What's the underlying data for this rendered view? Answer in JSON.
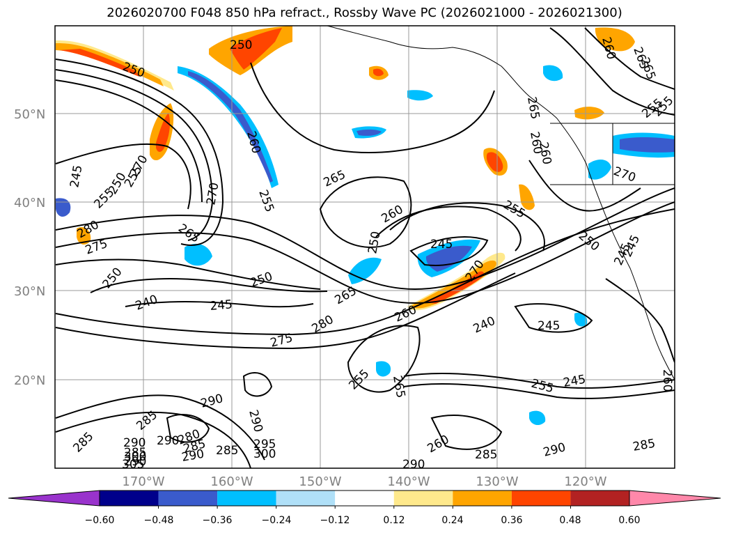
{
  "title": "2026020700 F048 850 hPa refract., Rossby Wave PC (2026021000 - 2026021300)",
  "map": {
    "lat_labels": [
      "50°N",
      "40°N",
      "30°N",
      "20°N"
    ],
    "lon_labels": [
      "170°W",
      "160°W",
      "150°W",
      "140°W",
      "130°W",
      "120°W"
    ],
    "contour_labels": [
      {
        "text": "250"
      },
      {
        "text": "250"
      },
      {
        "text": "260"
      },
      {
        "text": "260"
      },
      {
        "text": "265"
      },
      {
        "text": "255"
      },
      {
        "text": "265"
      },
      {
        "text": "255"
      },
      {
        "text": "270"
      },
      {
        "text": "265"
      },
      {
        "text": "280"
      },
      {
        "text": "275"
      },
      {
        "text": "250"
      },
      {
        "text": "240"
      },
      {
        "text": "245"
      },
      {
        "text": "250"
      },
      {
        "text": "275"
      },
      {
        "text": "280"
      },
      {
        "text": "265"
      },
      {
        "text": "260"
      },
      {
        "text": "250"
      },
      {
        "text": "245"
      },
      {
        "text": "270"
      },
      {
        "text": "260"
      },
      {
        "text": "240"
      },
      {
        "text": "255"
      },
      {
        "text": "250"
      },
      {
        "text": "245"
      },
      {
        "text": "245"
      },
      {
        "text": "255"
      },
      {
        "text": "245"
      },
      {
        "text": "255"
      },
      {
        "text": "265"
      },
      {
        "text": "290"
      },
      {
        "text": "285"
      },
      {
        "text": "290"
      },
      {
        "text": "280"
      },
      {
        "text": "285"
      },
      {
        "text": "290"
      },
      {
        "text": "285"
      },
      {
        "text": "295"
      },
      {
        "text": "300"
      },
      {
        "text": "285"
      },
      {
        "text": "290"
      },
      {
        "text": "285"
      },
      {
        "text": "290"
      },
      {
        "text": "285"
      },
      {
        "text": "260"
      },
      {
        "text": "265"
      },
      {
        "text": "270"
      },
      {
        "text": "245"
      },
      {
        "text": "250"
      },
      {
        "text": "255"
      },
      {
        "text": "255"
      },
      {
        "text": "260"
      },
      {
        "text": "260"
      },
      {
        "text": "260"
      },
      {
        "text": "265"
      },
      {
        "text": "255"
      },
      {
        "text": "270"
      },
      {
        "text": "245"
      },
      {
        "text": "290"
      },
      {
        "text": "285"
      },
      {
        "text": "290"
      },
      {
        "text": "305"
      },
      {
        "text": "300"
      },
      {
        "text": "290"
      }
    ]
  },
  "colorbar": {
    "ticks": [
      "−0.60",
      "−0.48",
      "−0.36",
      "−0.24",
      "−0.12",
      "0.12",
      "0.24",
      "0.36",
      "0.48",
      "0.60"
    ],
    "colors": [
      "#9933cc",
      "#00008b",
      "#3a5bcc",
      "#00bfff",
      "#b0e0f8",
      "#ffffff",
      "#ffe98c",
      "#ffa500",
      "#ff4500",
      "#b22222",
      "#ff88aa"
    ]
  },
  "colors": {
    "contour": "#000000",
    "grid": "#999999",
    "coast": "#000000"
  }
}
